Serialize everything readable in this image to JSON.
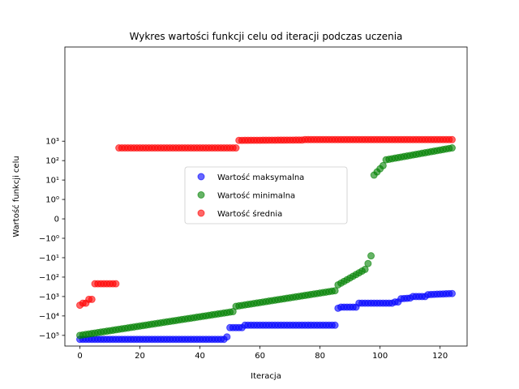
{
  "chart_data": {
    "type": "scatter",
    "title": "Wykres wartości funkcji celu od iteracji podczas uczenia",
    "xlabel": "Iteracja",
    "ylabel": "Wartość funkcji celu",
    "xlim": [
      -5,
      129
    ],
    "x_ticks": [
      0,
      20,
      40,
      60,
      80,
      100,
      120
    ],
    "y_scale": "symlog",
    "y_ticks": [
      {
        "value": 1000,
        "label": "10³"
      },
      {
        "value": 100,
        "label": "10²"
      },
      {
        "value": 10,
        "label": "10¹"
      },
      {
        "value": 1,
        "label": "10⁰"
      },
      {
        "value": 0,
        "label": "0"
      },
      {
        "value": -1,
        "label": "−10⁰"
      },
      {
        "value": -10,
        "label": "−10¹"
      },
      {
        "value": -100,
        "label": "−10²"
      },
      {
        "value": -1000,
        "label": "−10³"
      },
      {
        "value": -10000,
        "label": "−10⁴"
      },
      {
        "value": -100000,
        "label": "−10⁵"
      }
    ],
    "legend_position": "center",
    "series": [
      {
        "name": "Wartość maksymalna",
        "color": "#0000ff",
        "segments": [
          {
            "x_start": 0,
            "x_end": 48,
            "y_start": -160000,
            "y_end": -160000
          },
          {
            "x_start": 49,
            "x_end": 49,
            "y_start": -120000,
            "y_end": -120000
          },
          {
            "x_start": 50,
            "x_end": 54,
            "y_start": -40000,
            "y_end": -40000
          },
          {
            "x_start": 55,
            "x_end": 85,
            "y_start": -30000,
            "y_end": -30000
          },
          {
            "x_start": 86,
            "x_end": 86,
            "y_start": -4000,
            "y_end": -4000
          },
          {
            "x_start": 87,
            "x_end": 92,
            "y_start": -3500,
            "y_end": -3500
          },
          {
            "x_start": 93,
            "x_end": 104,
            "y_start": -2200,
            "y_end": -2200
          },
          {
            "x_start": 105,
            "x_end": 106,
            "y_start": -1900,
            "y_end": -1900
          },
          {
            "x_start": 107,
            "x_end": 110,
            "y_start": -1300,
            "y_end": -1200
          },
          {
            "x_start": 111,
            "x_end": 115,
            "y_start": -1000,
            "y_end": -1000
          },
          {
            "x_start": 116,
            "x_end": 124,
            "y_start": -800,
            "y_end": -700
          }
        ]
      },
      {
        "name": "Wartość minimalna",
        "color": "#008000",
        "segments": [
          {
            "x_start": 0,
            "x_end": 51,
            "y_start": -100000,
            "y_end": -6000
          },
          {
            "x_start": 52,
            "x_end": 85,
            "y_start": -3200,
            "y_end": -500
          },
          {
            "x_start": 86,
            "x_end": 95,
            "y_start": -250,
            "y_end": -40
          },
          {
            "x_start": 96,
            "x_end": 96,
            "y_start": -20,
            "y_end": -20
          },
          {
            "x_start": 97,
            "x_end": 97,
            "y_start": -8,
            "y_end": -8
          },
          {
            "x_start": 98,
            "x_end": 101,
            "y_start": 18,
            "y_end": 55
          },
          {
            "x_start": 102,
            "x_end": 124,
            "y_start": 110,
            "y_end": 450
          }
        ]
      },
      {
        "name": "Wartość średnia",
        "color": "#ff0000",
        "segments": [
          {
            "x_start": 0,
            "x_end": 0,
            "y_start": -2800,
            "y_end": -2800
          },
          {
            "x_start": 1,
            "x_end": 2,
            "y_start": -2200,
            "y_end": -2200
          },
          {
            "x_start": 3,
            "x_end": 4,
            "y_start": -1400,
            "y_end": -1400
          },
          {
            "x_start": 5,
            "x_end": 12,
            "y_start": -220,
            "y_end": -220
          },
          {
            "x_start": 13,
            "x_end": 52,
            "y_start": 450,
            "y_end": 450
          },
          {
            "x_start": 53,
            "x_end": 74,
            "y_start": 1100,
            "y_end": 1150
          },
          {
            "x_start": 75,
            "x_end": 124,
            "y_start": 1200,
            "y_end": 1200
          }
        ]
      }
    ]
  }
}
